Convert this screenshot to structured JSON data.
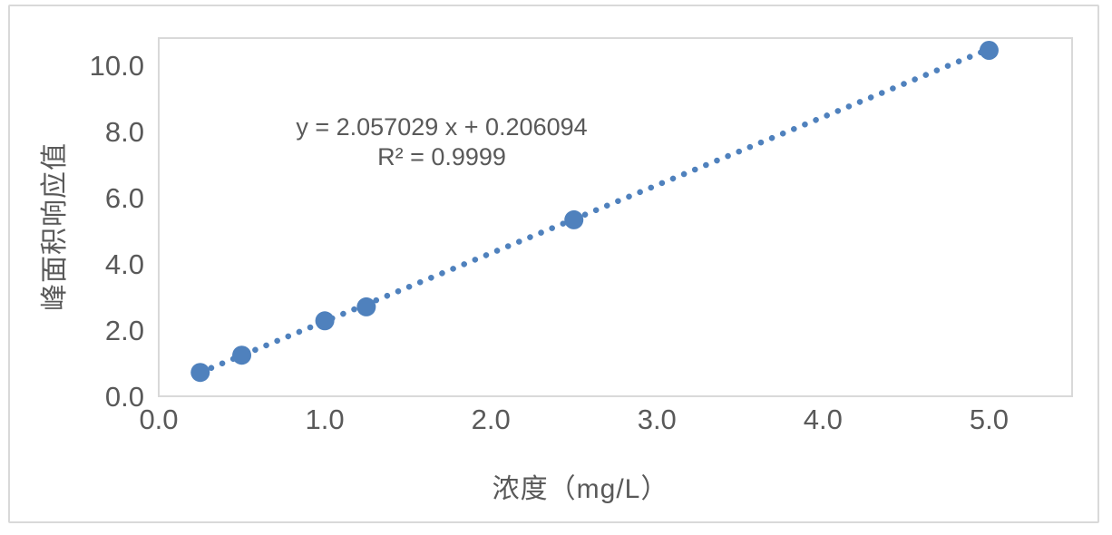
{
  "chart_data": {
    "type": "scatter",
    "title": "",
    "xlabel": "浓度（mg/L）",
    "ylabel": "峰面积响应值",
    "x": [
      0.25,
      0.5,
      1.0,
      1.25,
      2.5,
      5.0
    ],
    "y": [
      0.72,
      1.24,
      2.28,
      2.7,
      5.33,
      10.45
    ],
    "xlim": [
      0,
      5.5
    ],
    "ylim": [
      0,
      10.82
    ],
    "x_ticks": [
      "0.0",
      "1.0",
      "2.0",
      "3.0",
      "4.0",
      "5.0"
    ],
    "x_tick_values": [
      0,
      1,
      2,
      3,
      4,
      5
    ],
    "y_ticks": [
      "0.0",
      "2.0",
      "4.0",
      "6.0",
      "8.0",
      "10.0"
    ],
    "y_tick_values": [
      0,
      2,
      4,
      6,
      8,
      10
    ],
    "grid": false,
    "legend": false,
    "trendline": {
      "slope": 2.057029,
      "intercept": 0.206094,
      "style": "dotted",
      "x_start": 0.25,
      "x_end": 5.0
    },
    "annotation": {
      "equation": "y = 2.057029 x + 0.206094",
      "r_squared": "R² = 0.9999"
    },
    "colors": {
      "marker": "#4F81BD",
      "trendline": "#4F81BD",
      "text": "#595959",
      "border": "#D9D9D9"
    }
  }
}
